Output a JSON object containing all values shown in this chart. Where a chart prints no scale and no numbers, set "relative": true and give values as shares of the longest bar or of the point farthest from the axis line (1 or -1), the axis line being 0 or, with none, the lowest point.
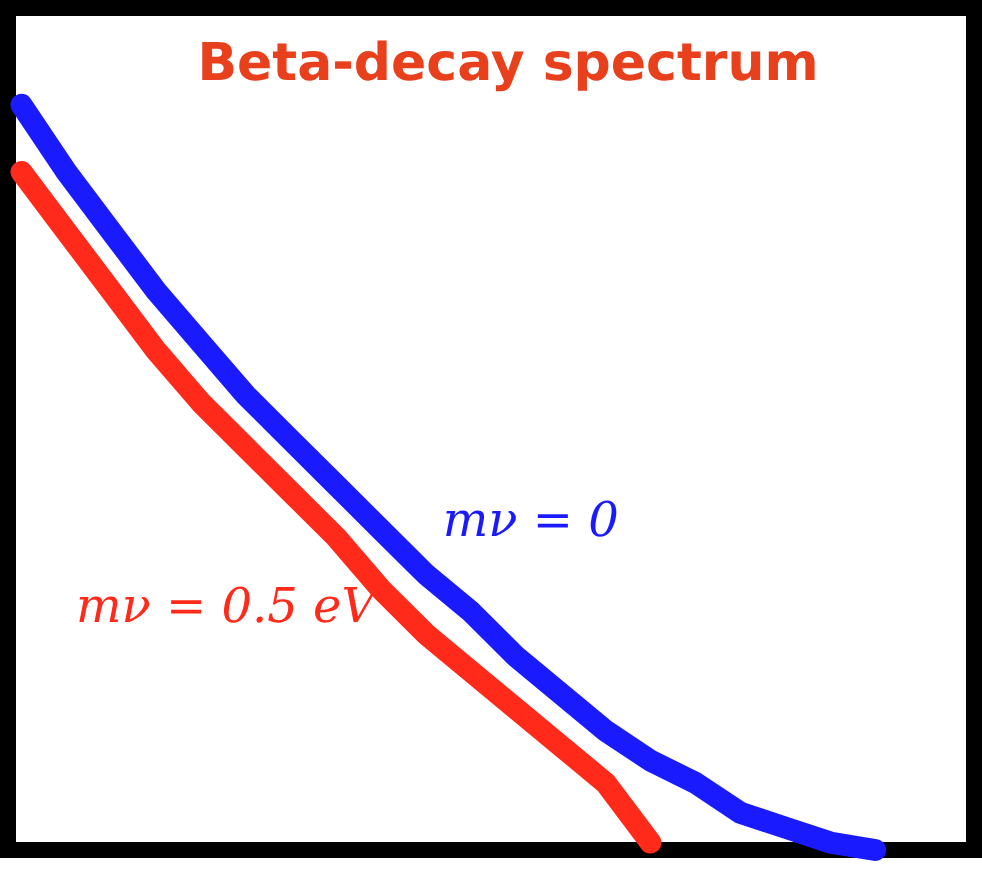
{
  "chart_data": {
    "type": "line",
    "title": "Beta-decay spectrum",
    "relative": true,
    "legend": false,
    "marker": "none",
    "line_style": "solid",
    "categories": [
      null,
      null,
      null,
      null,
      null,
      null,
      null,
      null,
      null,
      null,
      null,
      null,
      null,
      null,
      null,
      null,
      null,
      null,
      null,
      null
    ],
    "series": [
      {
        "name": "mν = 0",
        "color": "#1a1aff",
        "values": [
          1.0,
          0.91,
          0.83,
          0.75,
          0.68,
          0.61,
          0.55,
          0.49,
          0.43,
          0.37,
          0.32,
          0.26,
          0.21,
          0.16,
          0.12,
          0.09,
          0.05,
          0.03,
          0.01,
          0.0
        ]
      },
      {
        "name": "mν = 0.5 eV",
        "color": "#ff2a1a",
        "values": [
          0.91,
          0.83,
          0.75,
          0.67,
          0.6,
          0.54,
          0.48,
          0.42,
          0.35,
          0.29,
          0.24,
          0.19,
          0.14,
          0.09,
          0.01,
          null,
          null,
          null,
          null,
          null
        ]
      }
    ]
  }
}
